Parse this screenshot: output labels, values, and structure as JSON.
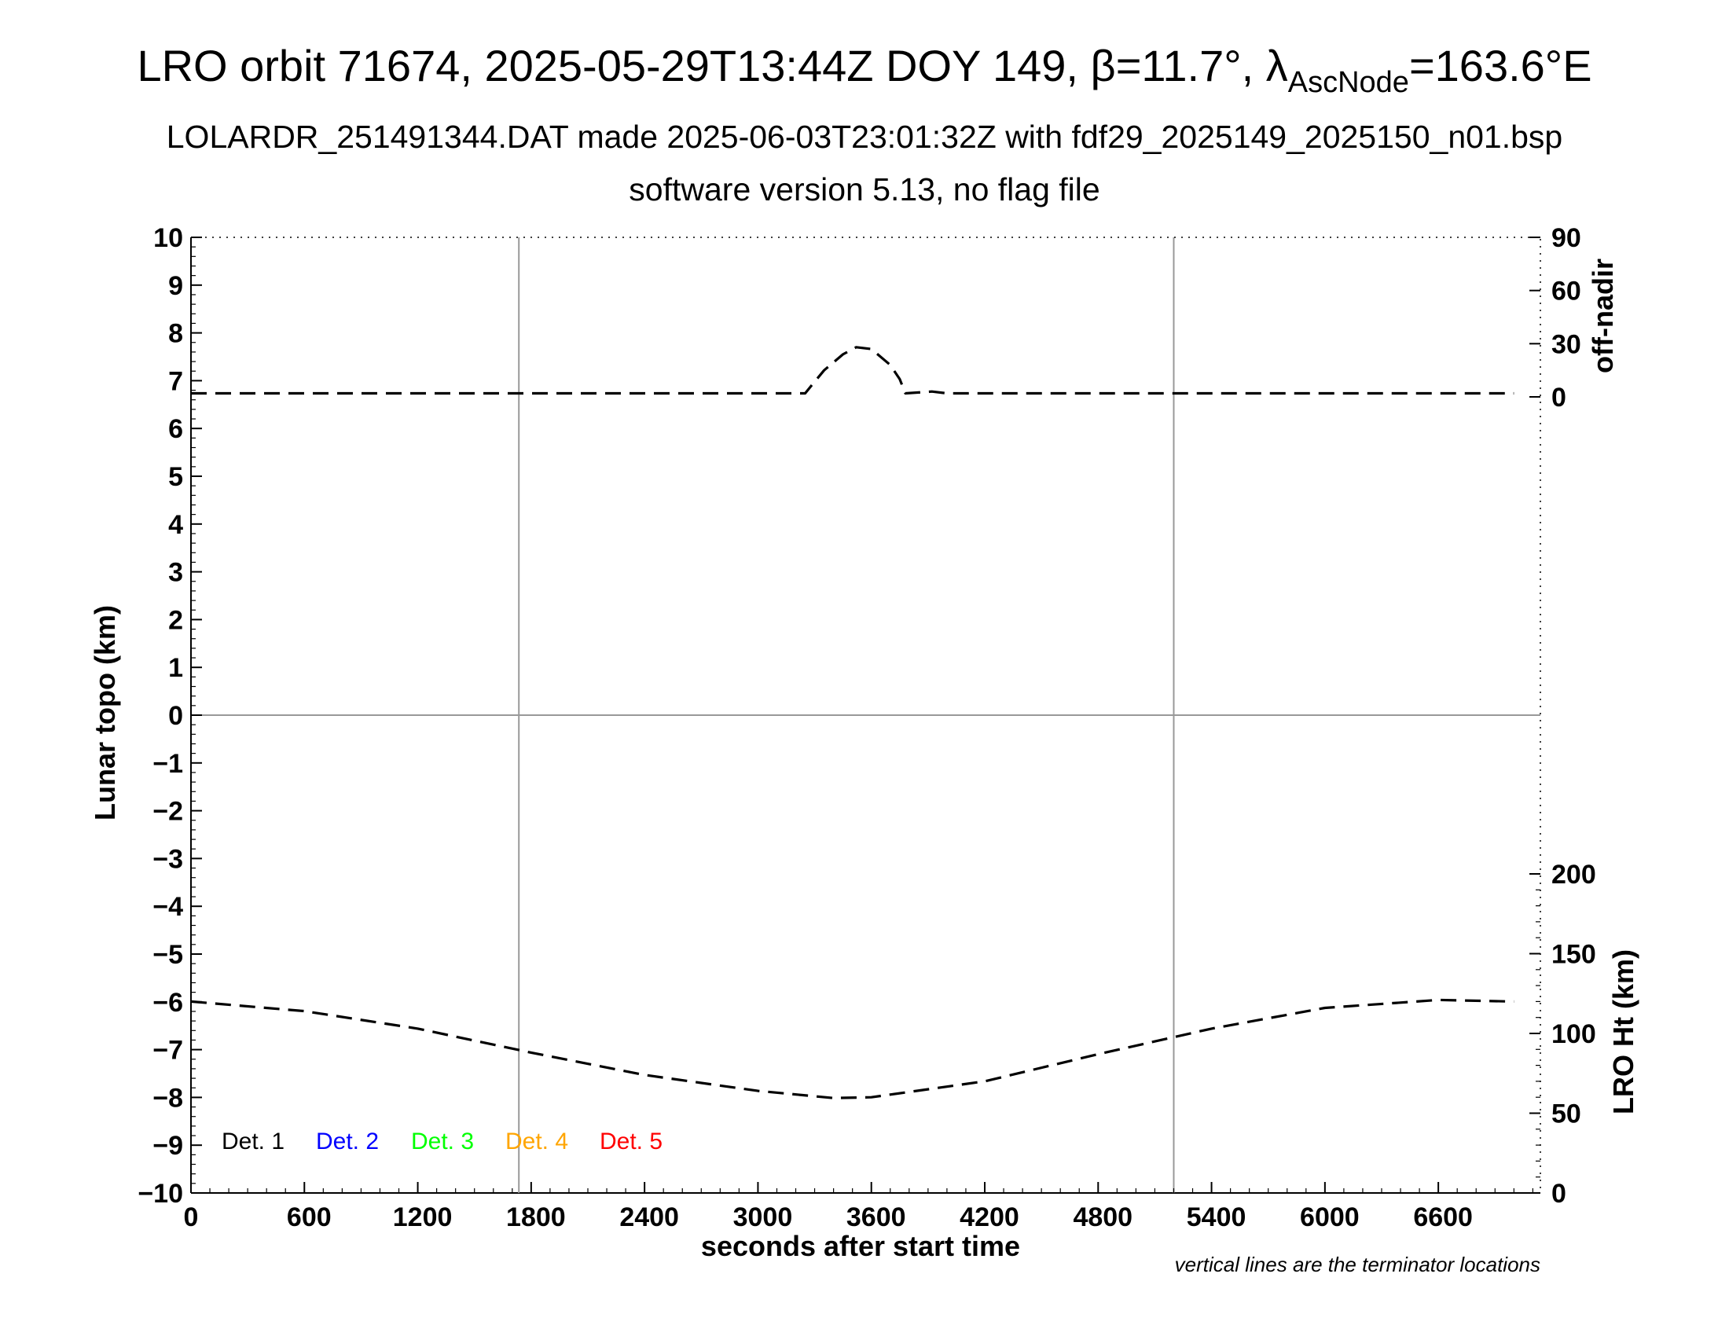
{
  "chart_data": {
    "type": "line",
    "title": "LRO orbit 71674, 2025-05-29T13:44Z DOY 149, β=11.7°, λ",
    "title_sub": "AscNode",
    "title_end": "=163.6°E",
    "subtitle1": "LOLARDR_251491344.DAT made 2025-06-03T23:01:32Z with fdf29_2025149_2025150_n01.bsp",
    "subtitle2": "software version 5.13, no flag file",
    "xlabel": "seconds after start time",
    "ylabel_left": "Lunar topo (km)",
    "ylabel_right_top": "off-nadir",
    "ylabel_right_bottom": "LRO Ht (km)",
    "footnote": "vertical lines are the terminator locations",
    "xlim": [
      0,
      7140
    ],
    "ylim": [
      -10,
      10
    ],
    "x_ticks": [
      {
        "value": 0,
        "label": "0"
      },
      {
        "value": 600,
        "label": "600"
      },
      {
        "value": 1200,
        "label": "1200"
      },
      {
        "value": 1800,
        "label": "1800"
      },
      {
        "value": 2400,
        "label": "2400"
      },
      {
        "value": 3000,
        "label": "3000"
      },
      {
        "value": 3600,
        "label": "3600"
      },
      {
        "value": 4200,
        "label": "4200"
      },
      {
        "value": 4800,
        "label": "4800"
      },
      {
        "value": 5400,
        "label": "5400"
      },
      {
        "value": 6000,
        "label": "6000"
      },
      {
        "value": 6600,
        "label": "6600"
      }
    ],
    "y_ticks_left": [
      {
        "value": 10,
        "label": "10"
      },
      {
        "value": 9,
        "label": "9"
      },
      {
        "value": 8,
        "label": "8"
      },
      {
        "value": 7,
        "label": "7"
      },
      {
        "value": 6,
        "label": "6"
      },
      {
        "value": 5,
        "label": "5"
      },
      {
        "value": 4,
        "label": "4"
      },
      {
        "value": 3,
        "label": "3"
      },
      {
        "value": 2,
        "label": "2"
      },
      {
        "value": 1,
        "label": "1"
      },
      {
        "value": 0,
        "label": "0"
      },
      {
        "value": -1,
        "label": "−1"
      },
      {
        "value": -2,
        "label": "−2"
      },
      {
        "value": -3,
        "label": "−3"
      },
      {
        "value": -4,
        "label": "−4"
      },
      {
        "value": -5,
        "label": "−5"
      },
      {
        "value": -6,
        "label": "−6"
      },
      {
        "value": -7,
        "label": "−7"
      },
      {
        "value": -8,
        "label": "−8"
      },
      {
        "value": -9,
        "label": "−9"
      },
      {
        "value": -10,
        "label": "−10"
      }
    ],
    "off_nadir_axis": {
      "range_deg": [
        0,
        90
      ],
      "ticks": [
        {
          "value": 90,
          "label": "90"
        },
        {
          "value": 60,
          "label": "60"
        },
        {
          "value": 30,
          "label": "30"
        },
        {
          "value": 0,
          "label": "0"
        }
      ]
    },
    "lro_ht_axis": {
      "range_km": [
        0,
        250
      ],
      "ticks": [
        {
          "value": 200,
          "label": "200"
        },
        {
          "value": 150,
          "label": "150"
        },
        {
          "value": 100,
          "label": "100"
        },
        {
          "value": 50,
          "label": "50"
        },
        {
          "value": 0,
          "label": "0"
        }
      ]
    },
    "terminator_lines_x": [
      1735,
      5200
    ],
    "zero_line_y": 0,
    "legend": [
      {
        "label": "Det. 1",
        "color": "#000000"
      },
      {
        "label": "Det. 2",
        "color": "#0000ff"
      },
      {
        "label": "Det. 3",
        "color": "#00ff00"
      },
      {
        "label": "Det. 4",
        "color": "#ffa500"
      },
      {
        "label": "Det. 5",
        "color": "#ff0000"
      }
    ],
    "series": [
      {
        "axis": "off-nadir",
        "line_style": "dashed",
        "color": "#000000",
        "x": [
          0,
          600,
          1200,
          1800,
          2400,
          3000,
          3250,
          3280,
          3350,
          3450,
          3520,
          3600,
          3700,
          3750,
          3780,
          3850,
          3920,
          4000,
          4800,
          5400,
          6000,
          6600,
          7000
        ],
        "y": [
          2,
          2,
          2,
          2,
          2,
          2,
          2,
          6,
          15,
          24,
          28,
          27,
          18,
          10,
          2,
          2.5,
          3,
          2,
          2,
          2,
          2,
          2,
          2
        ]
      },
      {
        "axis": "LRO Ht",
        "line_style": "dashed",
        "color": "#000000",
        "x": [
          0,
          600,
          1200,
          1800,
          2400,
          3000,
          3400,
          3600,
          4200,
          4800,
          5400,
          6000,
          6600,
          7000
        ],
        "y": [
          120,
          114,
          103,
          88,
          74,
          64,
          59.5,
          60,
          70,
          87,
          103,
          116,
          121,
          120
        ]
      }
    ]
  }
}
